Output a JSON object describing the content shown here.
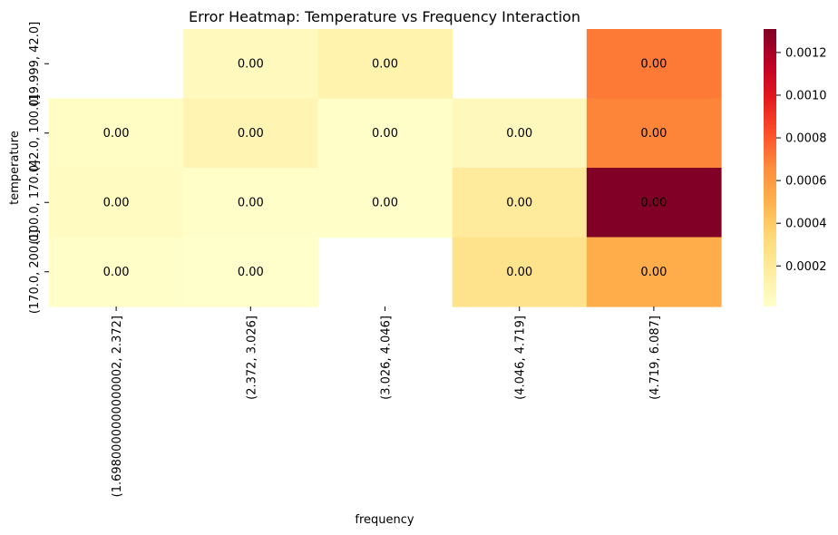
{
  "chart_data": {
    "type": "heatmap",
    "title": "Error Heatmap: Temperature vs Frequency Interaction",
    "xlabel": "frequency",
    "ylabel": "temperature",
    "x_categories": [
      "(1.6980000000000002, 2.372]",
      "(2.372, 3.026]",
      "(3.026, 4.046]",
      "(4.046, 4.719]",
      "(4.719, 6.087]"
    ],
    "y_categories": [
      "(19.999, 42.0]",
      "(42.0, 100.0]",
      "(100.0, 170.0]",
      "(170.0, 200.0]"
    ],
    "values": [
      [
        null,
        6e-05,
        0.00012,
        null,
        0.00071
      ],
      [
        4e-05,
        0.00011,
        2e-05,
        7e-05,
        0.00068
      ],
      [
        5e-05,
        2e-05,
        2e-05,
        0.00019,
        0.00131
      ],
      [
        2e-05,
        1e-05,
        null,
        0.00025,
        0.00052
      ]
    ],
    "cell_labels": [
      [
        "",
        "0.00",
        "0.00",
        "",
        "0.00"
      ],
      [
        "0.00",
        "0.00",
        "0.00",
        "0.00",
        "0.00"
      ],
      [
        "0.00",
        "0.00",
        "0.00",
        "0.00",
        "0.00"
      ],
      [
        "0.00",
        "0.00",
        "",
        "0.00",
        "0.00"
      ]
    ],
    "colorbar": {
      "vmin": 1e-05,
      "vmax": 0.00131,
      "ticks": [
        0.0002,
        0.0004,
        0.0006,
        0.0008,
        0.001,
        0.0012
      ],
      "tick_labels": [
        "0.0002",
        "0.0004",
        "0.0006",
        "0.0008",
        "0.0010",
        "0.0012"
      ],
      "colormap": "YlOrRd"
    },
    "grid": false
  }
}
